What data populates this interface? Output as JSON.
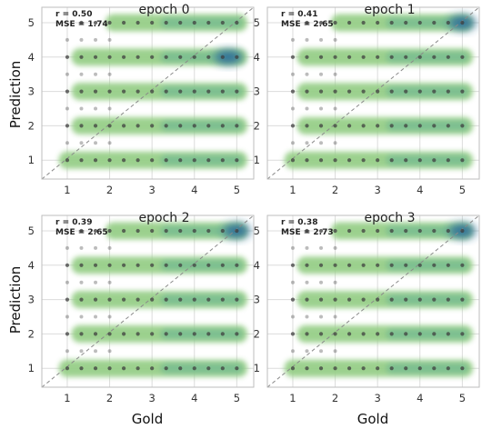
{
  "figure": {
    "ylabel": "Prediction",
    "xlabel": "Gold"
  },
  "colors": {
    "density_low": "#97cf88",
    "density_mid": "#5fae8f",
    "density_high": "#2a6b9a",
    "dots": "#3f3f3f",
    "grid": "#dcdcdc",
    "axes_edge": "#bdbdbd",
    "diagonal": "#8a8a8a"
  },
  "chart_data": [
    {
      "type": "scatter",
      "title": "epoch 0",
      "stats": {
        "r_label": "r = 0.50",
        "mse_label": "MSE = 1.74"
      },
      "xlabel": "",
      "ylabel": "Prediction",
      "x_ticks": [
        "1",
        "2",
        "3",
        "4",
        "5"
      ],
      "y_ticks": [
        "1",
        "2",
        "3",
        "4",
        "5"
      ],
      "xlim": [
        0.4,
        5.4
      ],
      "ylim": [
        0.45,
        5.45
      ],
      "grid": true,
      "reference_line": "y = x",
      "density_peak": {
        "x": 4.8,
        "y": 4
      }
    },
    {
      "type": "scatter",
      "title": "epoch 1",
      "stats": {
        "r_label": "r = 0.41",
        "mse_label": "MSE = 2.65"
      },
      "xlabel": "",
      "ylabel": "",
      "x_ticks": [
        "1",
        "2",
        "3",
        "4",
        "5"
      ],
      "y_ticks": [
        "1",
        "2",
        "3",
        "4",
        "5"
      ],
      "xlim": [
        0.4,
        5.4
      ],
      "ylim": [
        0.45,
        5.45
      ],
      "grid": true,
      "reference_line": "y = x",
      "density_peak": {
        "x": 5,
        "y": 5
      }
    },
    {
      "type": "scatter",
      "title": "epoch 2",
      "stats": {
        "r_label": "r = 0.39",
        "mse_label": "MSE = 2.65"
      },
      "xlabel": "Gold",
      "ylabel": "Prediction",
      "x_ticks": [
        "1",
        "2",
        "3",
        "4",
        "5"
      ],
      "y_ticks": [
        "1",
        "2",
        "3",
        "4",
        "5"
      ],
      "xlim": [
        0.4,
        5.4
      ],
      "ylim": [
        0.45,
        5.45
      ],
      "grid": true,
      "reference_line": "y = x",
      "density_peak": {
        "x": 5,
        "y": 5
      }
    },
    {
      "type": "scatter",
      "title": "epoch 3",
      "stats": {
        "r_label": "r = 0.38",
        "mse_label": "MSE = 2.73"
      },
      "xlabel": "Gold",
      "ylabel": "",
      "x_ticks": [
        "1",
        "2",
        "3",
        "4",
        "5"
      ],
      "y_ticks": [
        "1",
        "2",
        "3",
        "4",
        "5"
      ],
      "xlim": [
        0.4,
        5.4
      ],
      "ylim": [
        0.45,
        5.45
      ],
      "grid": true,
      "reference_line": "y = x",
      "density_peak": {
        "x": 5,
        "y": 5
      }
    }
  ]
}
